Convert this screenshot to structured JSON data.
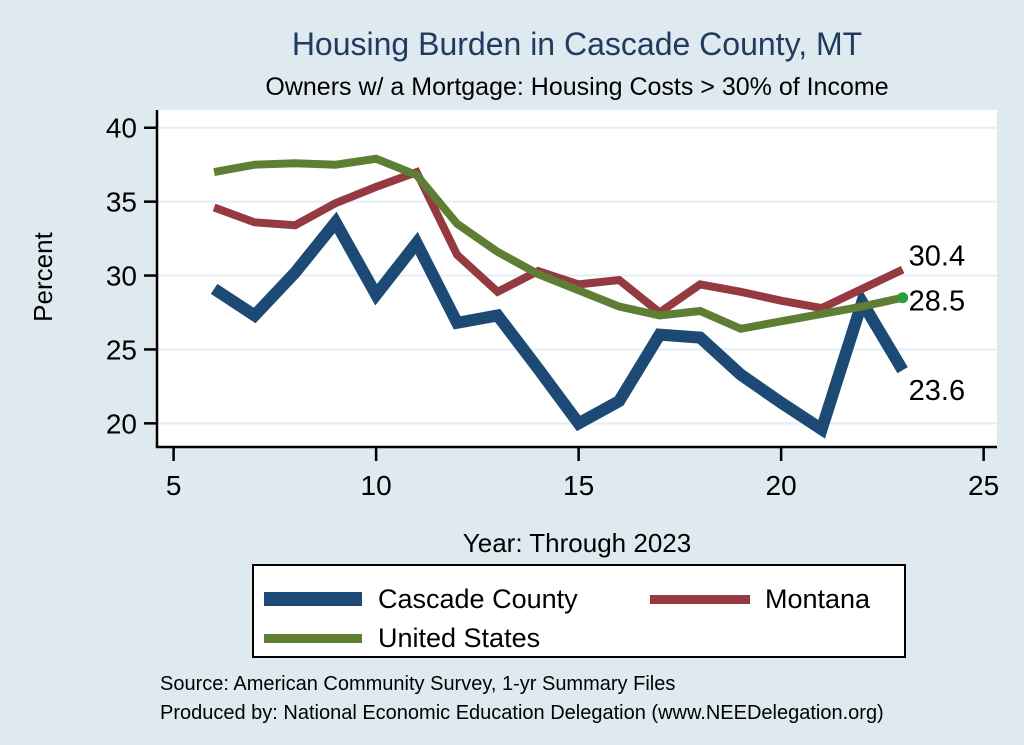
{
  "title": "Housing Burden in Cascade County, MT",
  "subtitle": "Owners w/ a Mortgage: Housing Costs > 30% of Income",
  "notes": {
    "source": "Source: American Community Survey, 1-yr Summary Files",
    "produced_by": "Produced by: National Economic Education Delegation (www.NEEDelegation.org)"
  },
  "colors": {
    "background": "#dfe9f0",
    "plot_background": "#ffffff",
    "gridline": "#e4eef5",
    "axis": "#000000",
    "title": "#203a60",
    "cascade_county": "#1c4a74",
    "montana": "#943a40",
    "united_states": "#5e7f33",
    "end_marker": "#2f9e35"
  },
  "chart_data": {
    "type": "line",
    "title": "Housing Burden in Cascade County, MT",
    "subtitle": "Owners w/ a Mortgage: Housing Costs > 30% of Income",
    "xlabel": "Year: Through 2023",
    "ylabel": "Percent",
    "x_ticks": [
      5,
      10,
      15,
      20,
      25
    ],
    "y_ticks": [
      20,
      25,
      30,
      35,
      40
    ],
    "xlim": [
      4.59,
      25.33
    ],
    "ylim": [
      18.4,
      41.2
    ],
    "grid": "horizontal-y",
    "legend_position": "bottom",
    "x": [
      6,
      7,
      8,
      9,
      10,
      11,
      12,
      13,
      14,
      15,
      16,
      17,
      18,
      19,
      20,
      21,
      22,
      23
    ],
    "series": [
      {
        "name": "Cascade County",
        "color": "#1c4a74",
        "stroke_width": 12,
        "end_label": "23.6",
        "values": [
          29.1,
          27.3,
          30.2,
          33.6,
          28.7,
          32.2,
          26.8,
          27.3,
          23.7,
          20.0,
          21.5,
          26.0,
          25.8,
          23.3,
          21.4,
          19.6,
          28.2,
          23.6
        ]
      },
      {
        "name": "Montana",
        "color": "#943a40",
        "stroke_width": 8,
        "end_label": "30.4",
        "values": [
          34.6,
          33.6,
          33.4,
          34.9,
          36.0,
          37.0,
          31.4,
          28.9,
          30.3,
          29.4,
          29.7,
          27.5,
          29.4,
          28.9,
          28.3,
          27.8,
          29.1,
          30.4
        ]
      },
      {
        "name": "United States",
        "color": "#5e7f33",
        "stroke_width": 8,
        "end_label": "28.5",
        "end_marker_color": "#2f9e35",
        "values": [
          37.0,
          37.5,
          37.6,
          37.5,
          37.9,
          36.8,
          33.5,
          31.6,
          30.1,
          29.0,
          27.9,
          27.3,
          27.6,
          26.4,
          26.9,
          27.4,
          27.9,
          28.5
        ]
      }
    ]
  }
}
